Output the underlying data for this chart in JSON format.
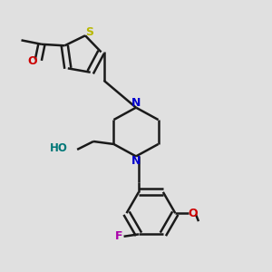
{
  "bg_color": "#e0e0e0",
  "bond_color": "#1a1a1a",
  "sulfur_color": "#b8b800",
  "nitrogen_color": "#0000cc",
  "oxygen_color": "#cc0000",
  "fluorine_color": "#aa00aa",
  "ho_color": "#007777",
  "bond_width": 1.8,
  "dbo": 0.012,
  "xlim": [
    0,
    1
  ],
  "ylim": [
    0,
    1
  ]
}
